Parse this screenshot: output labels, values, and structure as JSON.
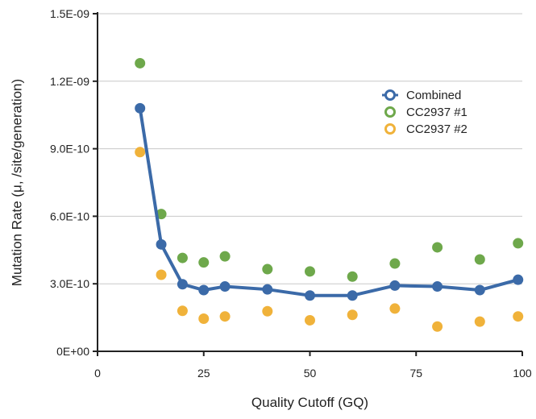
{
  "chart_data": {
    "type": "scatter",
    "title": "",
    "xlabel": "Quality Cutoff (GQ)",
    "ylabel": "Mutation Rate (μ, /site/generation)",
    "xlim": [
      0,
      100
    ],
    "ylim": [
      0,
      1.5e-09
    ],
    "x_ticks": [
      0,
      25,
      50,
      75,
      100
    ],
    "x_tick_labels": [
      "0",
      "25",
      "50",
      "75",
      "100"
    ],
    "y_ticks": [
      0,
      3e-10,
      6e-10,
      9e-10,
      1.2e-09,
      1.5e-09
    ],
    "y_tick_labels": [
      "0E+00",
      "3.0E-10",
      "6.0E-10",
      "9.0E-10",
      "1.2E-09",
      "1.5E-09"
    ],
    "grid": "horizontal",
    "legend_position": "top-right",
    "series": [
      {
        "name": "Combined",
        "color": "#3b6aa8",
        "style": "line-markers",
        "x": [
          10,
          15,
          20,
          25,
          30,
          40,
          50,
          60,
          70,
          80,
          90,
          99
        ],
        "y": [
          1.08e-09,
          4.75e-10,
          2.98e-10,
          2.72e-10,
          2.88e-10,
          2.75e-10,
          2.48e-10,
          2.48e-10,
          2.92e-10,
          2.88e-10,
          2.72e-10,
          3.18e-10
        ]
      },
      {
        "name": "CC2937 #1",
        "color": "#6ea84b",
        "style": "markers",
        "x": [
          10,
          15,
          20,
          25,
          30,
          40,
          50,
          60,
          70,
          80,
          90,
          99
        ],
        "y": [
          1.28e-09,
          6.1e-10,
          4.15e-10,
          3.95e-10,
          4.22e-10,
          3.65e-10,
          3.55e-10,
          3.32e-10,
          3.9e-10,
          4.62e-10,
          4.08e-10,
          4.8e-10
        ]
      },
      {
        "name": "CC2937 #2",
        "color": "#f0b23a",
        "style": "markers",
        "x": [
          10,
          15,
          20,
          25,
          30,
          40,
          50,
          60,
          70,
          80,
          90,
          99
        ],
        "y": [
          8.85e-10,
          3.4e-10,
          1.8e-10,
          1.45e-10,
          1.55e-10,
          1.78e-10,
          1.38e-10,
          1.62e-10,
          1.9e-10,
          1.1e-10,
          1.32e-10,
          1.55e-10
        ]
      }
    ]
  }
}
